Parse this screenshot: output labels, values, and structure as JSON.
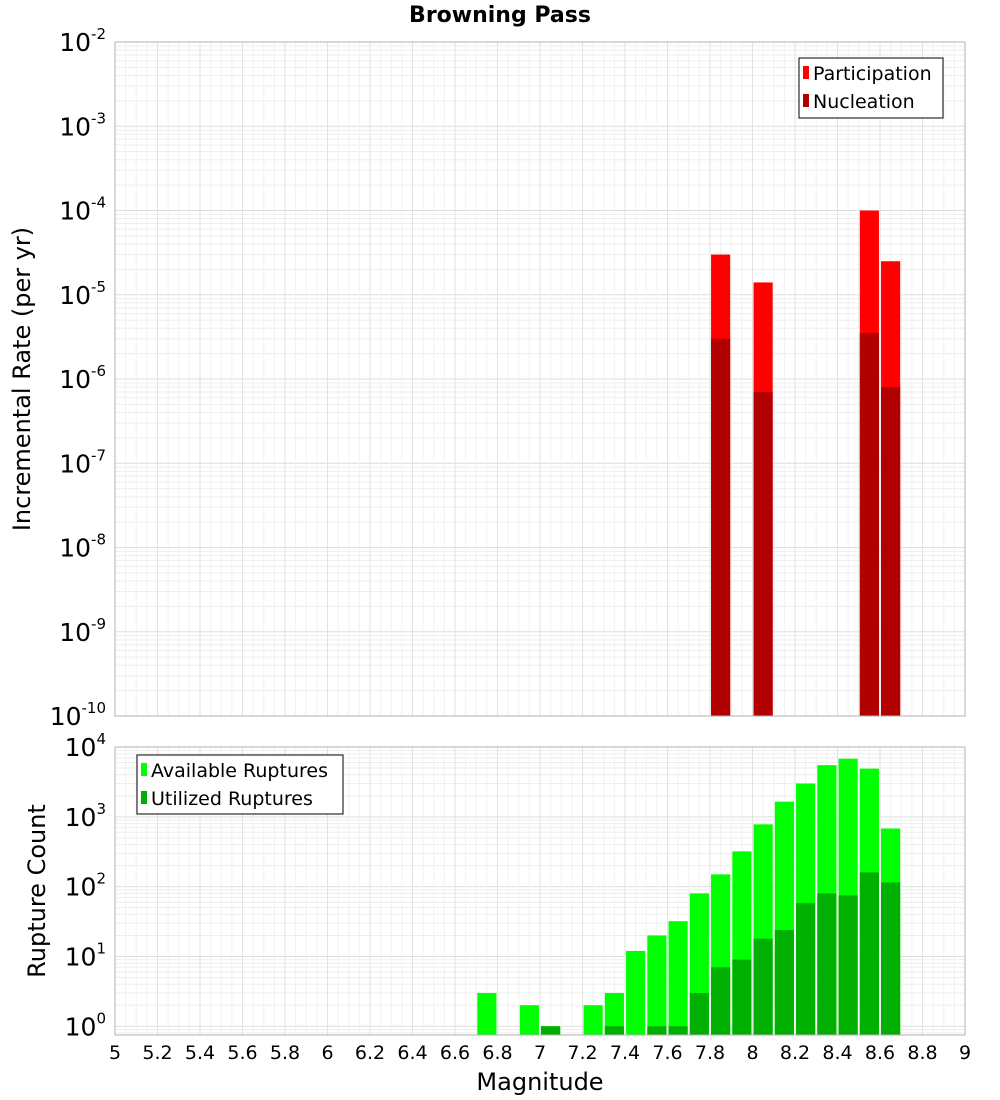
{
  "chart_data": [
    {
      "type": "bar",
      "title": "Browning Pass",
      "xlabel": "",
      "ylabel": "Incremental Rate (per yr)",
      "yscale": "log",
      "ylim": [
        1e-10,
        0.01
      ],
      "xlim": [
        5,
        9
      ],
      "y_ticks": [
        {
          "base": "10",
          "exp": "-10"
        },
        {
          "base": "10",
          "exp": "-9"
        },
        {
          "base": "10",
          "exp": "-8"
        },
        {
          "base": "10",
          "exp": "-7"
        },
        {
          "base": "10",
          "exp": "-6"
        },
        {
          "base": "10",
          "exp": "-5"
        },
        {
          "base": "10",
          "exp": "-4"
        },
        {
          "base": "10",
          "exp": "-3"
        },
        {
          "base": "10",
          "exp": "-2"
        }
      ],
      "grid": true,
      "legend_position": "top-right",
      "bar_width": 0.09,
      "x": [
        7.85,
        8.05,
        8.55,
        8.65
      ],
      "series": [
        {
          "name": "Participation",
          "color": "#ff0000",
          "values": [
            3e-05,
            1.4e-05,
            0.0001,
            2.5e-05
          ]
        },
        {
          "name": "Nucleation",
          "color": "#b00000",
          "values": [
            3e-06,
            7e-07,
            3.5e-06,
            8e-07
          ]
        }
      ]
    },
    {
      "type": "bar",
      "xlabel": "Magnitude",
      "ylabel": "Rupture Count",
      "yscale": "log",
      "ylim": [
        0.75,
        10000
      ],
      "xlim": [
        5,
        9
      ],
      "x_ticks": [
        "5",
        "5.2",
        "5.4",
        "5.6",
        "5.8",
        "6",
        "6.2",
        "6.4",
        "6.6",
        "6.8",
        "7",
        "7.2",
        "7.4",
        "7.6",
        "7.8",
        "8",
        "8.2",
        "8.4",
        "8.6",
        "8.8",
        "9"
      ],
      "y_ticks": [
        {
          "base": "10",
          "exp": "0"
        },
        {
          "base": "10",
          "exp": "1"
        },
        {
          "base": "10",
          "exp": "2"
        },
        {
          "base": "10",
          "exp": "3"
        },
        {
          "base": "10",
          "exp": "4"
        }
      ],
      "grid": true,
      "legend_position": "top-left",
      "bar_width": 0.09,
      "x": [
        6.75,
        6.95,
        7.05,
        7.25,
        7.35,
        7.45,
        7.55,
        7.65,
        7.75,
        7.85,
        7.95,
        8.05,
        8.15,
        8.25,
        8.35,
        8.45,
        8.55,
        8.65
      ],
      "series": [
        {
          "name": "Available Ruptures",
          "color": "#00ff00",
          "values": [
            3,
            2,
            1,
            2,
            3,
            12,
            20,
            32,
            80,
            150,
            320,
            780,
            1650,
            3000,
            5500,
            6800,
            4900,
            680
          ]
        },
        {
          "name": "Utilized Ruptures",
          "color": "#00b000",
          "values": [
            0,
            0,
            1,
            0,
            1,
            0,
            1,
            1,
            3,
            7,
            9,
            18,
            24,
            58,
            80,
            75,
            160,
            115
          ]
        }
      ]
    }
  ]
}
